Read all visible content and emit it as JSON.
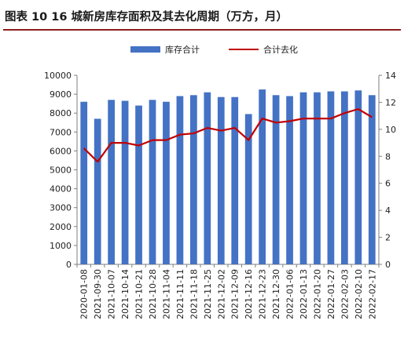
{
  "title": "图表 10 16 城新房库存面积及其去化周期（万方，月）",
  "chart_data": {
    "type": "bar",
    "categories": [
      "2020-01-08",
      "2021-09-30",
      "2021-10-07",
      "2021-10-14",
      "2021-10-21",
      "2021-10-28",
      "2021-11-04",
      "2021-11-11",
      "2021-11-18",
      "2021-11-25",
      "2021-12-02",
      "2021-12-09",
      "2021-12-16",
      "2021-12-23",
      "2021-12-30",
      "2022-01-06",
      "2022-01-13",
      "2022-01-20",
      "2022-01-27",
      "2022-02-03",
      "2022-02-10",
      "2022-02-17"
    ],
    "series": [
      {
        "name": "库存合计",
        "type": "bar",
        "axis": "left",
        "color": "#4472c4",
        "values": [
          8600,
          7700,
          8700,
          8650,
          8400,
          8700,
          8600,
          8900,
          8950,
          9100,
          8850,
          8850,
          7950,
          9250,
          8950,
          8900,
          9100,
          9100,
          9150,
          9150,
          9200,
          8950
        ]
      },
      {
        "name": "合计去化",
        "type": "line",
        "axis": "right",
        "color": "#c00000",
        "values": [
          8.6,
          7.6,
          9.0,
          9.0,
          8.8,
          9.2,
          9.2,
          9.6,
          9.7,
          10.1,
          9.9,
          10.1,
          9.2,
          10.8,
          10.5,
          10.6,
          10.8,
          10.8,
          10.8,
          11.2,
          11.5,
          10.9
        ]
      }
    ],
    "ylim_left": [
      0,
      10000
    ],
    "yticks_left": [
      0,
      1000,
      2000,
      3000,
      4000,
      5000,
      6000,
      7000,
      8000,
      9000,
      10000
    ],
    "ylim_right": [
      0,
      14
    ],
    "yticks_right": [
      0,
      2,
      4,
      6,
      8,
      10,
      12,
      14
    ],
    "grid": false,
    "legend_position": "top-center"
  }
}
